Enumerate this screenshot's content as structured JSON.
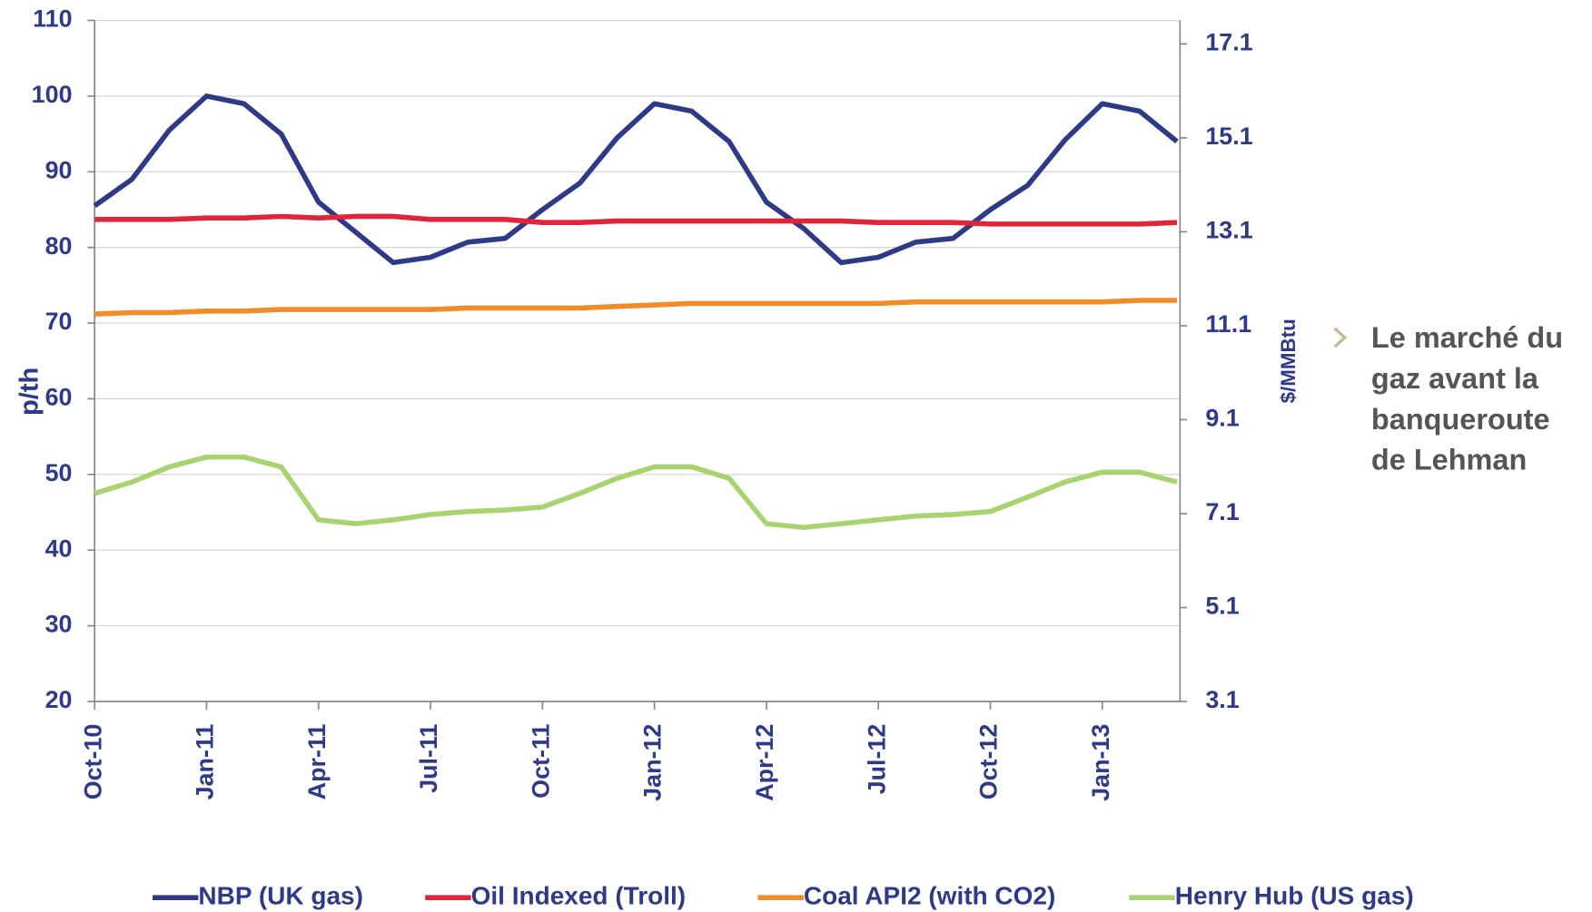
{
  "chart_data": {
    "type": "line",
    "categories": [
      "Oct-10",
      null,
      null,
      "Jan-11",
      null,
      null,
      "Apr-11",
      null,
      null,
      "Jul-11",
      null,
      null,
      "Oct-11",
      null,
      null,
      "Jan-12",
      null,
      null,
      "Apr-12",
      null,
      null,
      "Jul-12",
      null,
      null,
      "Oct-12",
      null,
      null,
      "Jan-13",
      null,
      null
    ],
    "ylabel": "p/th",
    "y2label": "$/MMBtu",
    "ylim": [
      20,
      110
    ],
    "yticks": [
      20,
      30,
      40,
      50,
      60,
      70,
      80,
      90,
      100,
      110
    ],
    "y2lim": [
      3.1,
      17.6
    ],
    "y2ticks": [
      3.1,
      5.1,
      7.1,
      9.1,
      11.1,
      13.1,
      15.1,
      17.1
    ],
    "grid": true,
    "legend": "bottom",
    "series": [
      {
        "name": "NBP (UK gas)",
        "color": "#2e3a87",
        "values": [
          85.5,
          89,
          95.5,
          100,
          99,
          95,
          86,
          82,
          78,
          78.7,
          80.7,
          81.2,
          85,
          88.5,
          94.5,
          99,
          98,
          94,
          86,
          82.5,
          78,
          78.7,
          80.7,
          81.2,
          85,
          88.2,
          94.2,
          99,
          98,
          94
        ]
      },
      {
        "name": "Oil Indexed (Troll)",
        "color": "#e0243a",
        "values": [
          83.7,
          83.7,
          83.7,
          83.9,
          83.9,
          84.1,
          83.9,
          84.1,
          84.1,
          83.7,
          83.7,
          83.7,
          83.3,
          83.3,
          83.5,
          83.5,
          83.5,
          83.5,
          83.5,
          83.5,
          83.5,
          83.3,
          83.3,
          83.3,
          83.1,
          83.1,
          83.1,
          83.1,
          83.1,
          83.3
        ]
      },
      {
        "name": "Coal API2 (with CO2)",
        "color": "#f28c28",
        "values": [
          71.2,
          71.4,
          71.4,
          71.6,
          71.6,
          71.8,
          71.8,
          71.8,
          71.8,
          71.8,
          72,
          72,
          72,
          72,
          72.2,
          72.4,
          72.6,
          72.6,
          72.6,
          72.6,
          72.6,
          72.6,
          72.8,
          72.8,
          72.8,
          72.8,
          72.8,
          72.8,
          73,
          73
        ]
      },
      {
        "name": "Henry Hub (US gas)",
        "color": "#a9d36e",
        "values": [
          47.5,
          49,
          51,
          52.3,
          52.3,
          51,
          44,
          43.5,
          44,
          44.7,
          45.1,
          45.3,
          45.7,
          47.5,
          49.5,
          51,
          51,
          49.5,
          43.5,
          43,
          43.5,
          44,
          44.5,
          44.7,
          45.1,
          47,
          49,
          50.3,
          50.3,
          49
        ]
      }
    ]
  },
  "side_note": {
    "lines": [
      "Le marché du",
      "gaz avant  la",
      "banqueroute",
      "de Lehman"
    ]
  }
}
